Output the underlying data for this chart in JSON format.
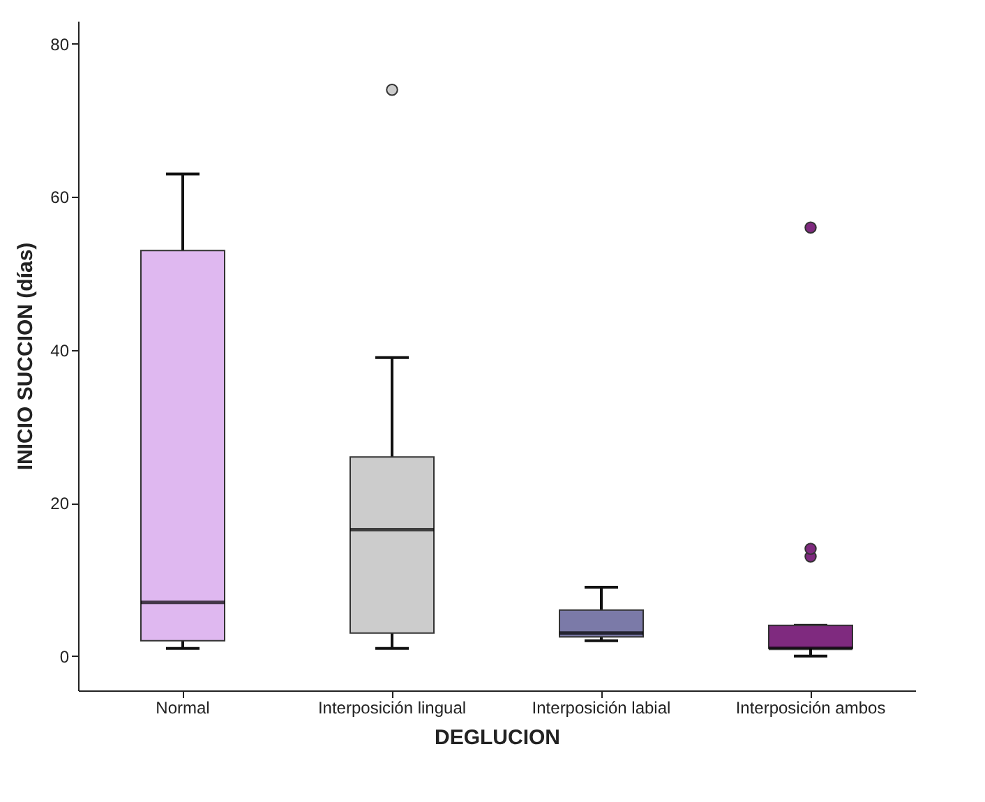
{
  "chart_data": {
    "type": "box",
    "xlabel": "DEGLUCION",
    "ylabel": "INICIO SUCCION (días)",
    "categories": [
      "Normal",
      "Interposición lingual",
      "Interposición labial",
      "Interposición ambos"
    ],
    "colors": [
      "#dfb8f0",
      "#cccccc",
      "#7b7aa8",
      "#7f2a7f"
    ],
    "boxes": [
      {
        "low": 1,
        "q1": 2,
        "median": 7,
        "q3": 53,
        "high": 63
      },
      {
        "low": 1,
        "q1": 3,
        "median": 16.5,
        "q3": 26,
        "high": 39,
        "outliers": [
          74
        ]
      },
      {
        "low": 2,
        "q1": 2.5,
        "median": 3,
        "q3": 6,
        "high": 9
      },
      {
        "low": 0,
        "q1": 1,
        "median": 1,
        "q3": 4,
        "high": 4,
        "outliers": [
          13,
          14,
          56
        ]
      }
    ],
    "ylim": [
      -4.5,
      83
    ],
    "yticks": [
      0,
      20,
      40,
      60,
      80
    ],
    "grid": false
  }
}
